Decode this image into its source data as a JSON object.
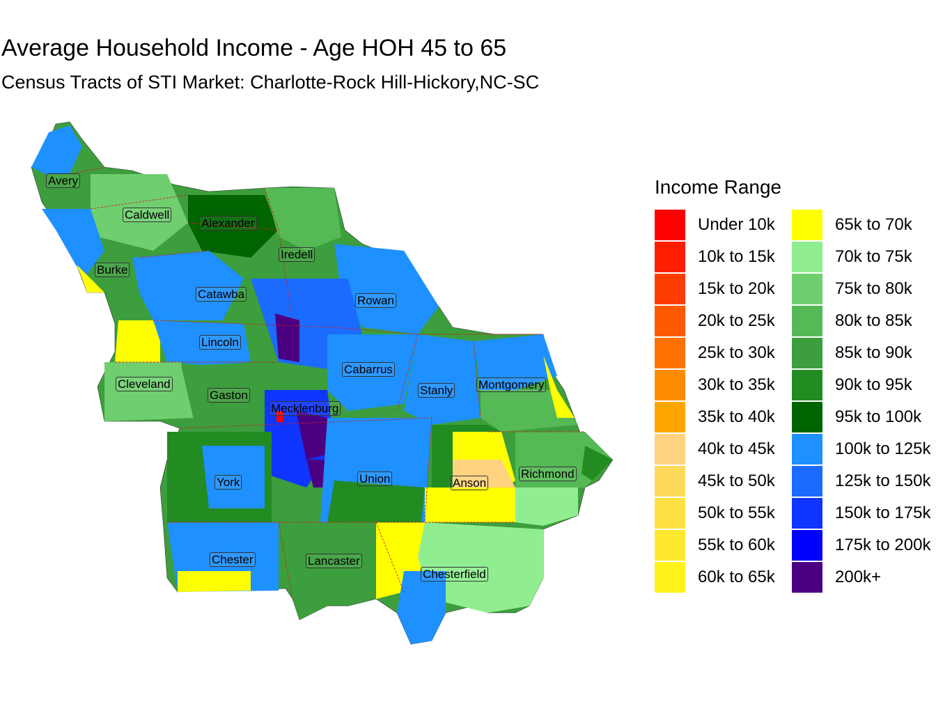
{
  "title": "Average Household Income - Age HOH 45 to 65",
  "subtitle": "Census Tracts of STI Market: Charlotte-Rock Hill-Hickory,NC-SC",
  "legend": {
    "title": "Income Range",
    "items": [
      {
        "label": "Under 10k",
        "color": "#FF0000"
      },
      {
        "label": "10k to 15k",
        "color": "#FF1E00"
      },
      {
        "label": "15k to 20k",
        "color": "#FF3C00"
      },
      {
        "label": "20k to 25k",
        "color": "#FF5A00"
      },
      {
        "label": "25k to 30k",
        "color": "#FF7200"
      },
      {
        "label": "30k to 35k",
        "color": "#FF8C00"
      },
      {
        "label": "35k to 40k",
        "color": "#FFA500"
      },
      {
        "label": "40k to 45k",
        "color": "#FFD37F"
      },
      {
        "label": "45k to 50k",
        "color": "#FFDA5A"
      },
      {
        "label": "50k to 55k",
        "color": "#FFE042"
      },
      {
        "label": "55k to 60k",
        "color": "#FFE830"
      },
      {
        "label": "60k to 65k",
        "color": "#FFF21C"
      },
      {
        "label": "65k to 70k",
        "color": "#FFFF00"
      },
      {
        "label": "70k to 75k",
        "color": "#90EE90"
      },
      {
        "label": "75k to 80k",
        "color": "#6FCF6F"
      },
      {
        "label": "80k to 85k",
        "color": "#55B955"
      },
      {
        "label": "85k to 90k",
        "color": "#3C9E3C"
      },
      {
        "label": "90k to 95k",
        "color": "#228B22"
      },
      {
        "label": "95k to 100k",
        "color": "#006400"
      },
      {
        "label": "100k to 125k",
        "color": "#1E90FF"
      },
      {
        "label": "125k to 150k",
        "color": "#1C6BFF"
      },
      {
        "label": "150k to 175k",
        "color": "#0F35FF"
      },
      {
        "label": "175k to 200k",
        "color": "#0000FF"
      },
      {
        "label": "200k+",
        "color": "#4B0082"
      }
    ]
  },
  "counties": [
    {
      "name": "Avery"
    },
    {
      "name": "Caldwell"
    },
    {
      "name": "Alexander"
    },
    {
      "name": "Iredell"
    },
    {
      "name": "Burke"
    },
    {
      "name": "Catawba"
    },
    {
      "name": "Rowan"
    },
    {
      "name": "Lincoln"
    },
    {
      "name": "Cabarrus"
    },
    {
      "name": "Cleveland"
    },
    {
      "name": "Stanly"
    },
    {
      "name": "Montgomery"
    },
    {
      "name": "Gaston"
    },
    {
      "name": "Mecklenburg"
    },
    {
      "name": "York"
    },
    {
      "name": "Union"
    },
    {
      "name": "Anson"
    },
    {
      "name": "Richmond"
    },
    {
      "name": "Chester"
    },
    {
      "name": "Lancaster"
    },
    {
      "name": "Chesterfield"
    }
  ]
}
